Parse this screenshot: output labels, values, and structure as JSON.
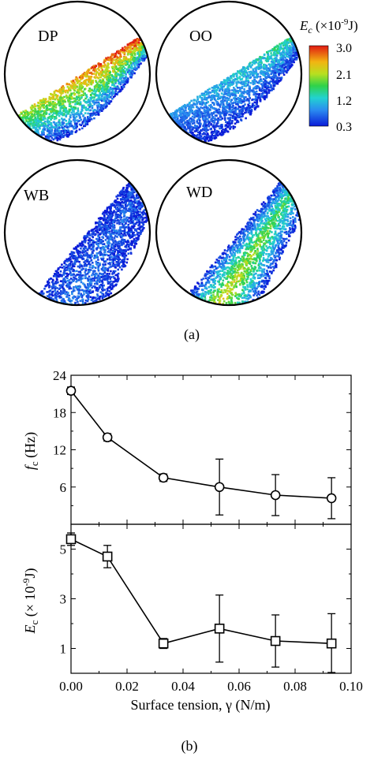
{
  "panel_a": {
    "caption": "(a)",
    "maps": [
      {
        "label": "DP",
        "band": "upper",
        "level": 0.85
      },
      {
        "label": "OO",
        "band": "upper",
        "level": 0.45
      },
      {
        "label": "WB",
        "band": "lower",
        "level": 0.18
      },
      {
        "label": "WD",
        "band": "lower",
        "level": 0.75
      }
    ],
    "colorbar": {
      "title_symbol": "E",
      "title_sub": "c",
      "title_unit_pre": " (×10",
      "title_exp": "-9",
      "title_unit_post": "J)",
      "ticks": [
        "3.0",
        "2.1",
        "1.2",
        "0.3"
      ],
      "min": 0.3,
      "max": 3.0
    }
  },
  "panel_b": {
    "caption": "(b)"
  },
  "chart_data": [
    {
      "type": "line",
      "marker": "circle",
      "x": [
        0.0,
        0.013,
        0.033,
        0.053,
        0.073,
        0.093
      ],
      "y": [
        21.5,
        14.0,
        7.5,
        6.0,
        4.7,
        4.2
      ],
      "yerr": [
        0.6,
        0.6,
        0.6,
        4.5,
        3.3,
        3.3
      ],
      "ylabel_symbol": "f",
      "ylabel_sub": "c",
      "ylabel_unit": " (Hz)",
      "yticks": [
        "6",
        "12",
        "18",
        "24"
      ],
      "ytick_values": [
        6,
        12,
        18,
        24
      ],
      "ylim": [
        0,
        24
      ],
      "xlim": [
        0.0,
        0.1
      ]
    },
    {
      "type": "line",
      "marker": "square",
      "x": [
        0.0,
        0.013,
        0.033,
        0.053,
        0.073,
        0.093
      ],
      "y": [
        5.4,
        4.7,
        1.2,
        1.8,
        1.3,
        1.2
      ],
      "yerr": [
        0.25,
        0.45,
        0.2,
        1.35,
        1.05,
        1.2
      ],
      "ylabel_symbol": "E",
      "ylabel_sub": "c",
      "ylabel_unit_pre": " (× 10",
      "ylabel_exp": "-9",
      "ylabel_unit_post": "J)",
      "yticks": [
        "1",
        "3",
        "5"
      ],
      "ytick_values": [
        1,
        3,
        5
      ],
      "ylim": [
        0,
        6
      ],
      "xlim": [
        0.0,
        0.1
      ],
      "xlabel": "Surface tension, γ (N/m)",
      "xticks": [
        "0.00",
        "0.02",
        "0.04",
        "0.06",
        "0.08",
        "0.10"
      ],
      "xtick_values": [
        0.0,
        0.02,
        0.04,
        0.06,
        0.08,
        0.1
      ]
    }
  ]
}
